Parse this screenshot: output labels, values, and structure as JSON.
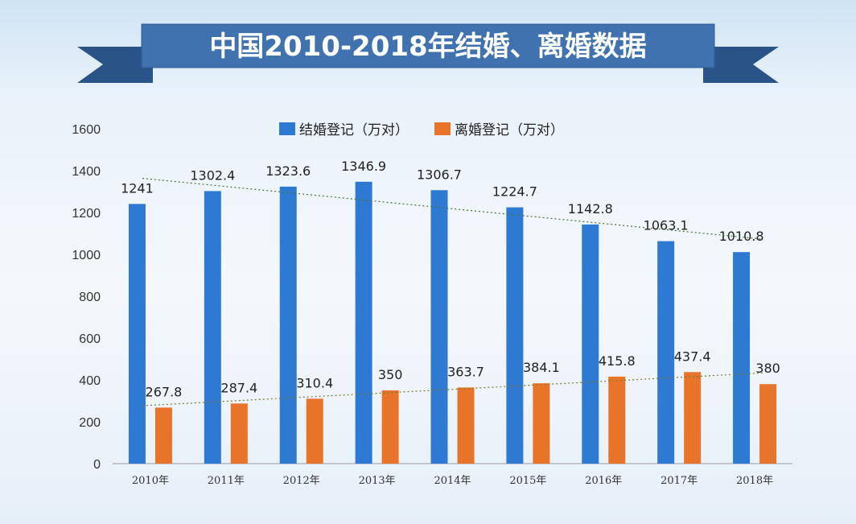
{
  "title": "中国2010-2018年结婚、离婚数据",
  "colors": {
    "banner": "#3f72ae",
    "banner_dark": "#2a5487",
    "marriage": "#2e7ad3",
    "divorce": "#e8742a",
    "axis": "#9a9a9a"
  },
  "chart_data": {
    "type": "bar",
    "categories": [
      "2010年",
      "2011年",
      "2012年",
      "2013年",
      "2014年",
      "2015年",
      "2016年",
      "2017年",
      "2018年"
    ],
    "series": [
      {
        "name": "结婚登记（万对）",
        "values": [
          1241,
          1302.4,
          1323.6,
          1346.9,
          1306.7,
          1224.7,
          1142.8,
          1063.1,
          1010.8
        ],
        "color": "#2e7ad3"
      },
      {
        "name": "离婚登记（万对）",
        "values": [
          267.8,
          287.4,
          310.4,
          350,
          363.7,
          384.1,
          415.8,
          437.4,
          380
        ],
        "color": "#e8742a"
      }
    ],
    "data_labels": {
      "marriage": [
        "1241",
        "1302.4",
        "1323.6",
        "1346.9",
        "1306.7",
        "1224.7",
        "1142.8",
        "1063.1",
        "1010.8"
      ],
      "divorce": [
        "267.8",
        "287.4",
        "310.4",
        "350",
        "363.7",
        "384.1",
        "415.8",
        "437.4",
        "380"
      ]
    },
    "ylim": [
      0,
      1600
    ],
    "yticks": [
      "0",
      "200",
      "400",
      "600",
      "800",
      "1000",
      "1200",
      "1400",
      "1600"
    ],
    "trendlines": "dotted linear trend for each series",
    "legend": "top-center",
    "grid": false
  }
}
